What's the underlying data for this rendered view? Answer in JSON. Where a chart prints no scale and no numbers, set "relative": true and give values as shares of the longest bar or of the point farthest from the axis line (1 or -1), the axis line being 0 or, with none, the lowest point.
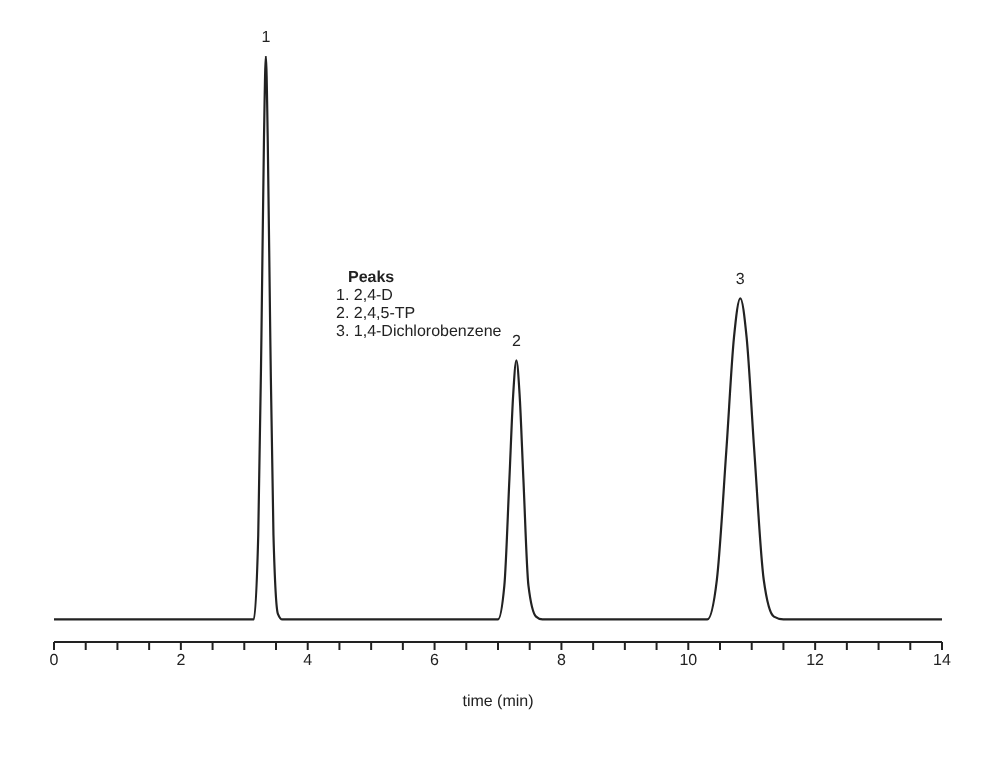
{
  "chart_data": {
    "type": "line",
    "relative": true,
    "xlabel": "time (min)",
    "xlim": [
      0,
      14
    ],
    "xticks": [
      0,
      {
        "value": 0.5,
        "label": null
      },
      {
        "value": 1,
        "label": null
      },
      {
        "value": 1.5,
        "label": null
      },
      2,
      {
        "value": 2.5,
        "label": null
      },
      {
        "value": 3,
        "label": null
      },
      {
        "value": 3.5,
        "label": null
      },
      4,
      {
        "value": 4.5,
        "label": null
      },
      {
        "value": 5,
        "label": null
      },
      {
        "value": 5.5,
        "label": null
      },
      6,
      {
        "value": 6.5,
        "label": null
      },
      {
        "value": 7,
        "label": null
      },
      {
        "value": 7.5,
        "label": null
      },
      8,
      {
        "value": 8.5,
        "label": null
      },
      {
        "value": 9,
        "label": null
      },
      {
        "value": 9.5,
        "label": null
      },
      10,
      {
        "value": 10.5,
        "label": null
      },
      {
        "value": 11,
        "label": null
      },
      {
        "value": 11.5,
        "label": null
      },
      12,
      {
        "value": 12.5,
        "label": null
      },
      {
        "value": 13,
        "label": null
      },
      {
        "value": 13.5,
        "label": null
      },
      14
    ],
    "grid": false,
    "legend": false,
    "marker": "none",
    "line_style": "solid",
    "x": [
      0,
      3.15,
      3.22,
      3.27,
      3.31,
      3.34,
      3.37,
      3.41,
      3.46,
      3.53,
      3.6,
      7.0,
      7.1,
      7.18,
      7.24,
      7.29,
      7.34,
      7.4,
      7.48,
      7.6,
      7.7,
      10.3,
      10.45,
      10.6,
      10.72,
      10.82,
      10.92,
      11.04,
      11.19,
      11.35,
      11.5,
      14
    ],
    "series": [
      {
        "color": "#222222",
        "values": [
          0,
          0,
          0.15,
          0.5,
          0.85,
          1,
          0.85,
          0.5,
          0.15,
          0.01,
          0,
          0,
          0.06,
          0.25,
          0.4,
          0.46,
          0.4,
          0.25,
          0.06,
          0.005,
          0,
          0,
          0.07,
          0.3,
          0.5,
          0.57,
          0.5,
          0.3,
          0.07,
          0.005,
          0,
          0
        ]
      }
    ],
    "annotations": [
      {
        "text": "1",
        "x": 3.34,
        "y": 1
      },
      {
        "text": "2",
        "x": 7.29,
        "y": 0.46
      },
      {
        "text": "3",
        "x": 10.82,
        "y": 0.57
      },
      "Peaks",
      "1. 2,4-D",
      "2. 2,4,5-TP",
      "3. 1,4-Dichlorobenzene"
    ]
  }
}
